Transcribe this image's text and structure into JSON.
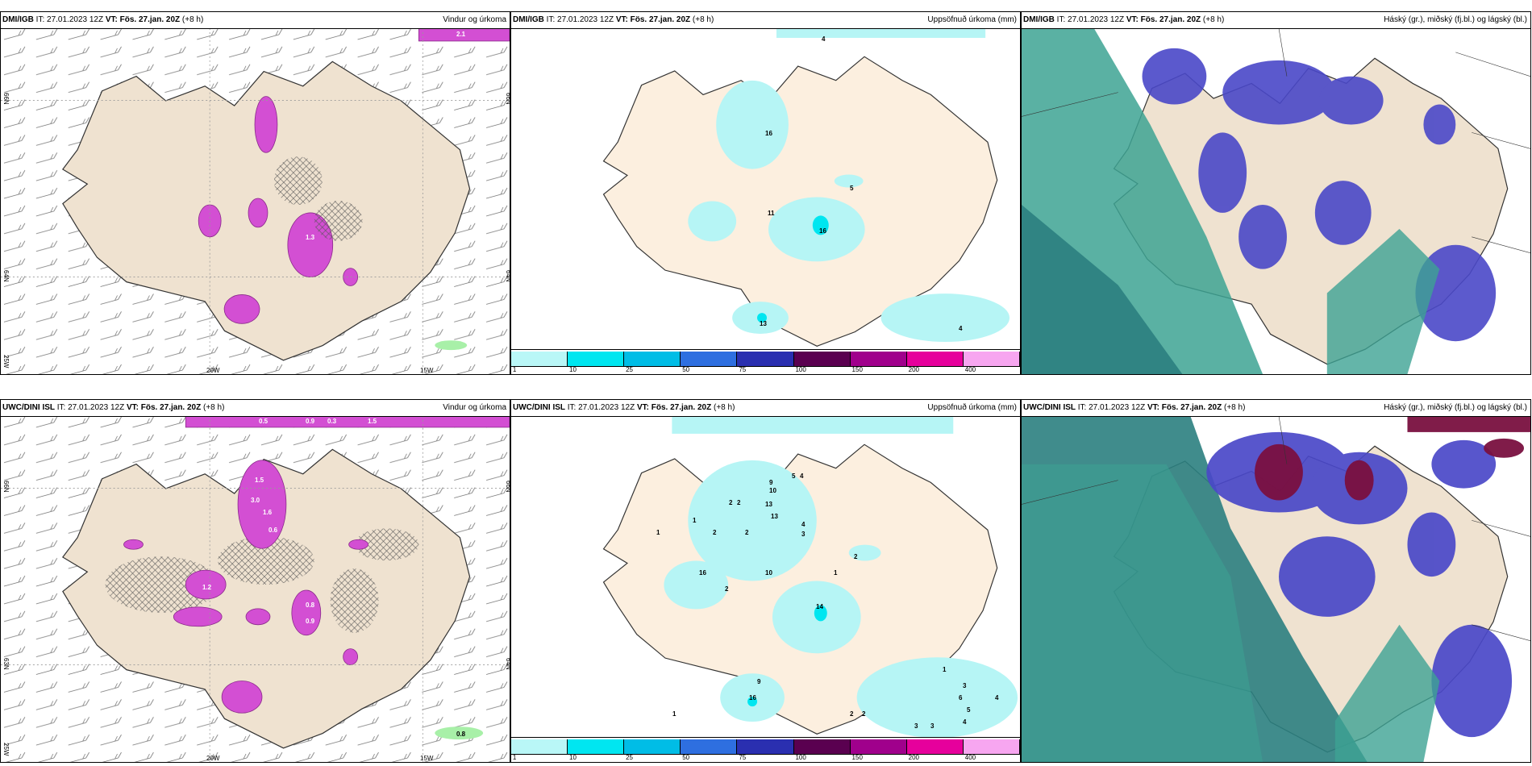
{
  "rows": [
    {
      "model": "DMI/IGB",
      "it_label": "IT:",
      "it_value": "27.01.2023 12Z",
      "vt_label": "VT:",
      "vt_value": "Fös. 27.jan. 20Z",
      "lead": "(+8 h)"
    },
    {
      "model": "UWC/DINI ISL",
      "it_label": "IT:",
      "it_value": "27.01.2023 12Z",
      "vt_label": "VT:",
      "vt_value": "Fös. 27.jan. 20Z",
      "lead": "(+8 h)"
    }
  ],
  "panel_titles": {
    "wind": "Vindur og úrkoma",
    "precip": "Uppsöfnuð úrkoma (mm)",
    "cloud": "Háský (gr.), miðský (fj.bl.) og lágský (bl.)"
  },
  "axis_labels": {
    "lon_20w": "20W",
    "lon_15w": "15W",
    "lat_66n": "66N",
    "lat_64n": "64N",
    "lat_63n": "63N",
    "lon_25w": "25W"
  },
  "precip_scale": {
    "ticks": [
      "1",
      "10",
      "25",
      "50",
      "75",
      "100",
      "150",
      "200",
      "400"
    ],
    "colors": [
      "#b9f7f7",
      "#00e6f0",
      "#00bde6",
      "#2e6fe0",
      "#2a2fb0",
      "#5a0050",
      "#a0008c",
      "#e6009c",
      "#f7a6f0"
    ]
  },
  "colors": {
    "land": "#efe2d0",
    "land_precip": "#fcefdf",
    "precip_light": "#b6f5f5",
    "wind_precip": "#d34fd3",
    "cloud_low": "#3da393",
    "cloud_mid": "#4a48c8",
    "cloud_high": "#7a1040"
  },
  "values": {
    "top_wind": [
      "2.1",
      "1.3"
    ],
    "top_precip": [
      "4",
      "16",
      "11",
      "16",
      "5",
      "13",
      "4"
    ],
    "bottom_wind": [
      "0.8",
      "0.5",
      "0.9",
      "0.3",
      "1.5",
      "1.5",
      "3.0",
      "1.6",
      "0.6",
      "1.2",
      "0.9",
      "0.8"
    ],
    "bottom_precip": [
      "5",
      "4",
      "9",
      "10",
      "13",
      "13",
      "4",
      "3",
      "2",
      "2",
      "1",
      "1",
      "2",
      "2",
      "16",
      "10",
      "2",
      "14",
      "1",
      "9",
      "16",
      "1",
      "3",
      "6",
      "4",
      "5",
      "3",
      "3",
      "2",
      "2",
      "4",
      "1",
      "2"
    ]
  }
}
